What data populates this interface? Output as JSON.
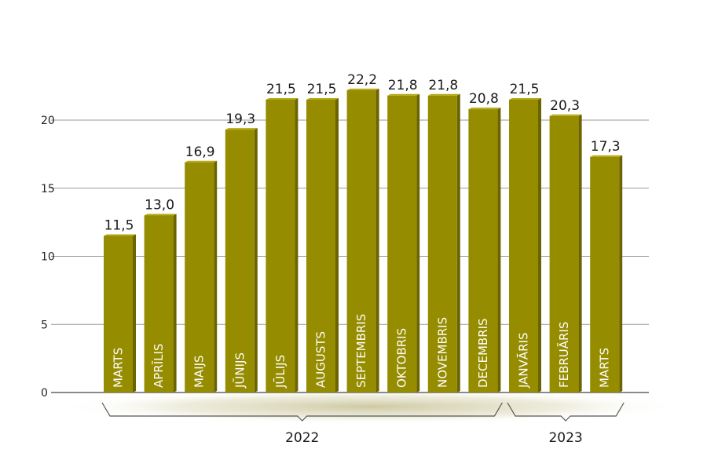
{
  "chart_data": {
    "type": "bar",
    "categories": [
      "MARTS",
      "APRĪLIS",
      "MAIJS",
      "JŪNIJS",
      "JŪLIJS",
      "AUGUSTS",
      "SEPTEMBRIS",
      "OKTOBRIS",
      "NOVEMBRIS",
      "DECEMBRIS",
      "JANVĀRIS",
      "FEBRUĀRIS",
      "MARTS"
    ],
    "values": [
      11.5,
      13.0,
      16.9,
      19.3,
      21.5,
      21.5,
      22.2,
      21.8,
      21.8,
      20.8,
      21.5,
      20.3,
      17.3
    ],
    "value_labels": [
      "11,5",
      "13,0",
      "16,9",
      "19,3",
      "21,5",
      "21,5",
      "22,2",
      "21,8",
      "21,8",
      "20,8",
      "21,5",
      "20,3",
      "17,3"
    ],
    "groups": [
      {
        "label": "2022",
        "start": 0,
        "end": 9
      },
      {
        "label": "2023",
        "start": 10,
        "end": 12
      }
    ],
    "yticks": [
      0,
      5,
      10,
      15,
      20
    ],
    "ylim": [
      0,
      25
    ],
    "grid": true,
    "title": "",
    "xlabel": "",
    "ylabel": "",
    "colors": {
      "bar": "#968c00",
      "bar_side": "#6b6400",
      "bar_top": "#b5aa14",
      "grid": "#9a9a9a",
      "shadow": "#c8c39a"
    }
  }
}
